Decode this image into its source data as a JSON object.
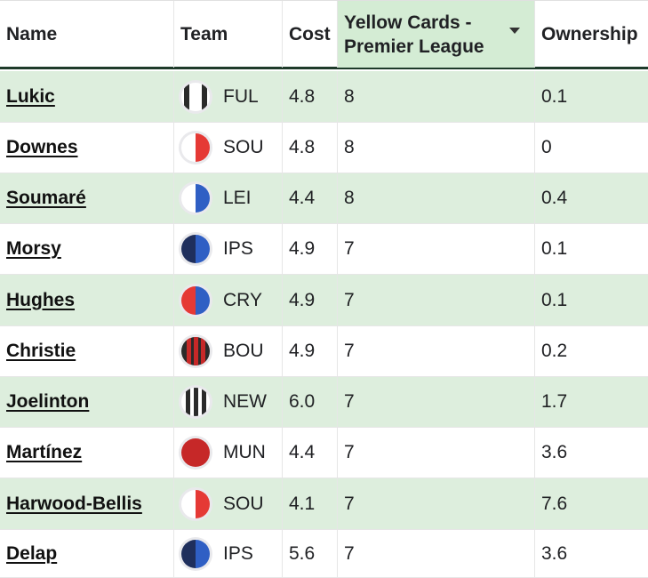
{
  "headers": {
    "name": "Name",
    "team": "Team",
    "cost": "Cost",
    "yellow_cards": "Yellow Cards - Premier League",
    "ownership": "Ownership"
  },
  "sort": {
    "column": "yellow_cards",
    "direction": "descending"
  },
  "rows": [
    {
      "name": "Lukic",
      "team": "FUL",
      "cost": "4.8",
      "yellow_cards": "8",
      "ownership": "0.1"
    },
    {
      "name": "Downes",
      "team": "SOU",
      "cost": "4.8",
      "yellow_cards": "8",
      "ownership": "0"
    },
    {
      "name": "Soumaré",
      "team": "LEI",
      "cost": "4.4",
      "yellow_cards": "8",
      "ownership": "0.4"
    },
    {
      "name": "Morsy",
      "team": "IPS",
      "cost": "4.9",
      "yellow_cards": "7",
      "ownership": "0.1"
    },
    {
      "name": "Hughes",
      "team": "CRY",
      "cost": "4.9",
      "yellow_cards": "7",
      "ownership": "0.1"
    },
    {
      "name": "Christie",
      "team": "BOU",
      "cost": "4.9",
      "yellow_cards": "7",
      "ownership": "0.2"
    },
    {
      "name": "Joelinton",
      "team": "NEW",
      "cost": "6.0",
      "yellow_cards": "7",
      "ownership": "1.7"
    },
    {
      "name": "Martínez",
      "team": "MUN",
      "cost": "4.4",
      "yellow_cards": "7",
      "ownership": "3.6"
    },
    {
      "name": "Harwood-Bellis",
      "team": "SOU",
      "cost": "4.1",
      "yellow_cards": "7",
      "ownership": "7.6"
    },
    {
      "name": "Delap",
      "team": "IPS",
      "cost": "5.6",
      "yellow_cards": "7",
      "ownership": "3.6"
    }
  ],
  "colors": {
    "header_border": "#1e3a2a",
    "sorted_header_bg": "#d4ecd4",
    "stripe_bg": "#ddeedd"
  }
}
